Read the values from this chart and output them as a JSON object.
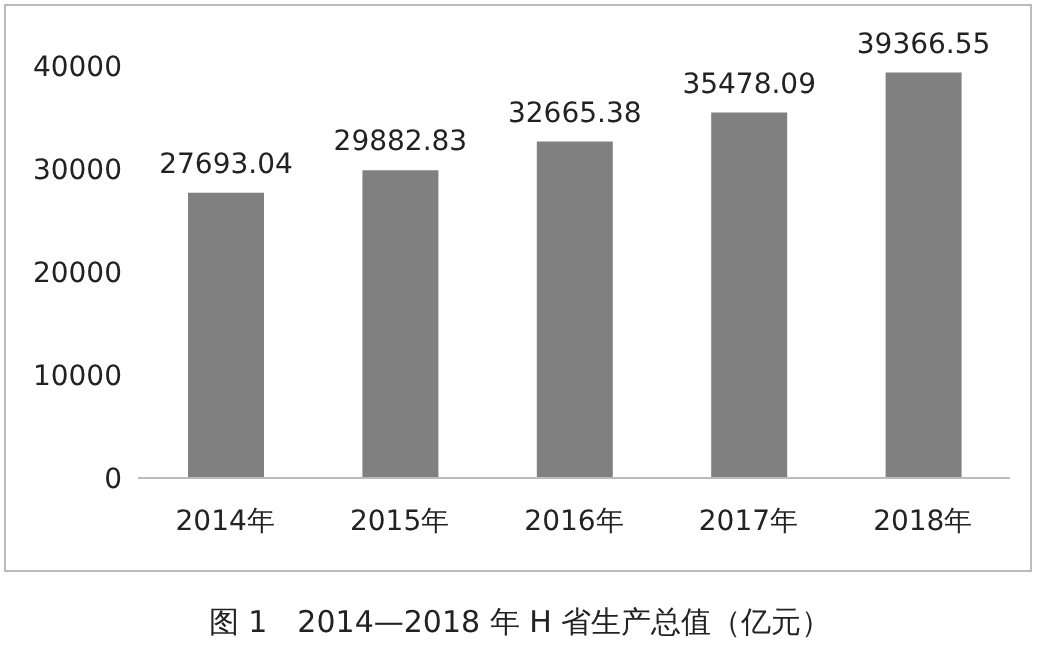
{
  "chart_data": {
    "type": "bar",
    "title": "图 1　2014—2018 年 H 省生产总值（亿元）",
    "categories": [
      "2014年",
      "2015年",
      "2016年",
      "2017年",
      "2018年"
    ],
    "values": [
      27693.04,
      29882.83,
      32665.38,
      35478.09,
      39366.55
    ],
    "color": "#808080",
    "ylim": [
      0,
      40000
    ],
    "yticks": [
      0,
      10000,
      20000,
      30000,
      40000
    ],
    "grid": false,
    "data_labels": true
  }
}
